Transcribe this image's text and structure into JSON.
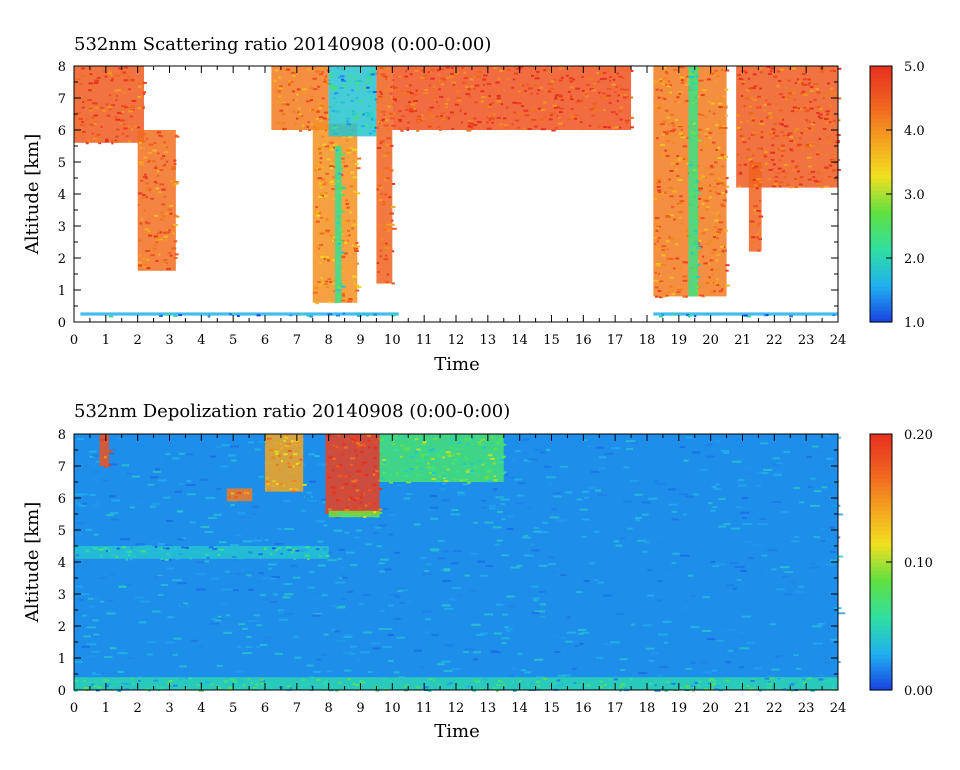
{
  "chart_data": [
    {
      "type": "heatmap",
      "title": "532nm Scattering ratio  20140908 (0:00-0:00)",
      "xlabel": "Time",
      "ylabel": "Altitude [km]",
      "xlim": [
        0,
        24
      ],
      "ylim": [
        0,
        8
      ],
      "x_ticks": [
        "0",
        "1",
        "2",
        "3",
        "4",
        "5",
        "6",
        "7",
        "8",
        "9",
        "10",
        "11",
        "12",
        "13",
        "14",
        "15",
        "16",
        "17",
        "18",
        "19",
        "20",
        "21",
        "22",
        "23",
        "24"
      ],
      "y_ticks": [
        "0",
        "1",
        "2",
        "3",
        "4",
        "5",
        "6",
        "7",
        "8"
      ],
      "colorbar": {
        "range": [
          1.0,
          5.0
        ],
        "tick_values": [
          1.0,
          2.0,
          3.0,
          4.0,
          5.0
        ],
        "tick_labels": [
          "1.0",
          "2.0",
          "3.0",
          "4.0",
          "5.0"
        ],
        "colors": [
          "#1a40e0",
          "#20b0f0",
          "#30e0a0",
          "#60e040",
          "#f0e020",
          "#f5a020",
          "#f06020",
          "#e83020"
        ]
      },
      "background_color": "#ffffff",
      "features": [
        {
          "t0": 0.0,
          "t1": 2.2,
          "z0": 5.6,
          "z1": 8.0,
          "value": 4.5
        },
        {
          "t0": 2.0,
          "t1": 3.2,
          "z0": 1.6,
          "z1": 6.0,
          "value": 4.3
        },
        {
          "t0": 6.2,
          "t1": 8.0,
          "z0": 6.0,
          "z1": 8.0,
          "value": 4.2
        },
        {
          "t0": 7.5,
          "t1": 8.9,
          "z0": 0.6,
          "z1": 6.2,
          "value": 4.0
        },
        {
          "t0": 8.2,
          "t1": 8.4,
          "z0": 0.6,
          "z1": 5.5,
          "value": 2.2
        },
        {
          "t0": 8.0,
          "t1": 9.5,
          "z0": 5.8,
          "z1": 8.0,
          "value": 1.8
        },
        {
          "t0": 9.5,
          "t1": 10.0,
          "z0": 1.2,
          "z1": 8.0,
          "value": 4.4
        },
        {
          "t0": 10.0,
          "t1": 17.5,
          "z0": 6.0,
          "z1": 8.0,
          "value": 4.6
        },
        {
          "t0": 18.2,
          "t1": 20.5,
          "z0": 0.8,
          "z1": 8.0,
          "value": 4.2
        },
        {
          "t0": 19.3,
          "t1": 19.6,
          "z0": 0.8,
          "z1": 8.0,
          "value": 2.3
        },
        {
          "t0": 20.8,
          "t1": 24.0,
          "z0": 4.2,
          "z1": 8.0,
          "value": 4.5
        },
        {
          "t0": 21.2,
          "t1": 21.6,
          "z0": 2.2,
          "z1": 5.0,
          "value": 4.4
        },
        {
          "t0": 0.2,
          "t1": 10.2,
          "z0": 0.2,
          "z1": 0.3,
          "value": 1.6
        },
        {
          "t0": 18.2,
          "t1": 24.0,
          "z0": 0.2,
          "z1": 0.3,
          "value": 1.6
        }
      ]
    },
    {
      "type": "heatmap",
      "title": "532nm Depolization ratio  20140908 (0:00-0:00)",
      "xlabel": "Time",
      "ylabel": "Altitude [km]",
      "xlim": [
        0,
        24
      ],
      "ylim": [
        0,
        8
      ],
      "x_ticks": [
        "0",
        "1",
        "2",
        "3",
        "4",
        "5",
        "6",
        "7",
        "8",
        "9",
        "10",
        "11",
        "12",
        "13",
        "14",
        "15",
        "16",
        "17",
        "18",
        "19",
        "20",
        "21",
        "22",
        "23",
        "24"
      ],
      "y_ticks": [
        "0",
        "1",
        "2",
        "3",
        "4",
        "5",
        "6",
        "7",
        "8"
      ],
      "colorbar": {
        "range": [
          0.0,
          0.2
        ],
        "tick_values": [
          0.0,
          0.1,
          0.2
        ],
        "tick_labels": [
          "0.00",
          "0.10",
          "0.20"
        ],
        "colors": [
          "#1a40e0",
          "#20b0f0",
          "#30e0a0",
          "#60e040",
          "#f0e020",
          "#f5a020",
          "#f06020",
          "#e83020"
        ]
      },
      "background_value": 0.02,
      "features": [
        {
          "t0": 0.8,
          "t1": 1.1,
          "z0": 7.0,
          "z1": 8.0,
          "value": 0.18
        },
        {
          "t0": 4.8,
          "t1": 5.6,
          "z0": 5.9,
          "z1": 6.3,
          "value": 0.16
        },
        {
          "t0": 6.0,
          "t1": 7.2,
          "z0": 6.2,
          "z1": 8.0,
          "value": 0.14
        },
        {
          "t0": 7.9,
          "t1": 9.6,
          "z0": 5.5,
          "z1": 8.0,
          "value": 0.19
        },
        {
          "t0": 8.0,
          "t1": 9.6,
          "z0": 5.4,
          "z1": 5.6,
          "value": 0.09
        },
        {
          "t0": 9.6,
          "t1": 13.5,
          "z0": 6.5,
          "z1": 8.0,
          "value": 0.07
        },
        {
          "t0": 0.0,
          "t1": 24.0,
          "z0": 0.0,
          "z1": 0.4,
          "value": 0.05
        },
        {
          "t0": 0.0,
          "t1": 8.0,
          "z0": 4.1,
          "z1": 4.5,
          "value": 0.04
        }
      ]
    }
  ]
}
